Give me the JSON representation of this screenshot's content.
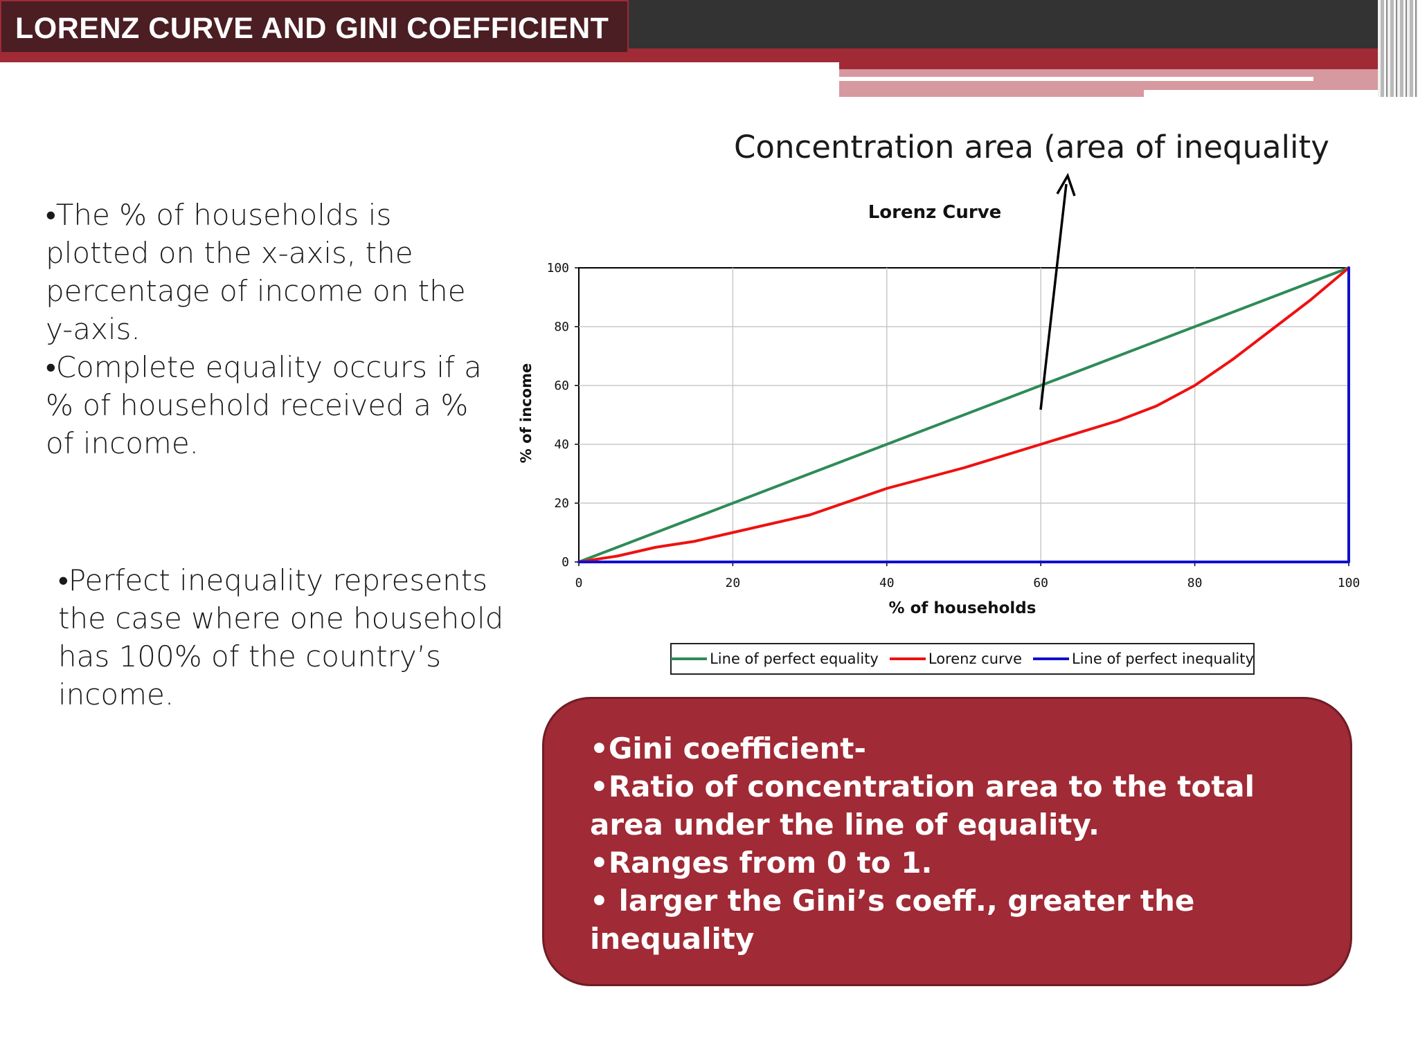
{
  "slide": {
    "title": "LORENZ CURVE AND GINI COEFFICIENT",
    "left_bullets_top": [
      "•The % of households is plotted on the x-axis, the percentage of income on the y-axis.",
      "•Complete equality occurs if a % of household received a % of income."
    ],
    "left_bullets_bottom": [
      "•Perfect inequality represents the case where one household has 100% of the country’s income."
    ],
    "annotation": "Concentration area (area of inequality",
    "gini_box": [
      "•Gini coefficient-",
      "•Ratio of concentration area to the total area under the line of equality.",
      "•Ranges from 0 to 1.",
      "• larger the Gini’s coeff., greater the inequality"
    ]
  },
  "colors": {
    "header_dark": "#333333",
    "header_red": "#a02a35",
    "box_fill": "#a02a35",
    "equality_line": "#2e8b57",
    "lorenz_line": "#ee1111",
    "inequality_line": "#1010cc"
  },
  "chart_data": {
    "type": "line",
    "title": "Lorenz Curve",
    "xlabel": "% of households",
    "ylabel": "% of income",
    "xlim": [
      0,
      100
    ],
    "ylim": [
      0,
      100
    ],
    "xticks": [
      0,
      20,
      40,
      60,
      80,
      100
    ],
    "yticks": [
      0,
      20,
      40,
      60,
      80,
      100
    ],
    "grid": true,
    "legend_position": "bottom",
    "series": [
      {
        "name": "Line of perfect equality",
        "color": "#2e8b57",
        "x": [
          0,
          100
        ],
        "y": [
          0,
          100
        ]
      },
      {
        "name": "Lorenz curve",
        "color": "#ee1111",
        "x": [
          0,
          5,
          10,
          15,
          20,
          25,
          30,
          40,
          50,
          60,
          70,
          75,
          80,
          85,
          90,
          95,
          100
        ],
        "y": [
          0,
          2,
          5,
          7,
          10,
          13,
          16,
          25,
          32,
          40,
          48,
          53,
          60,
          69,
          79,
          89,
          100
        ]
      },
      {
        "name": "Line of perfect inequality",
        "color": "#1010cc",
        "x": [
          0,
          100,
          100
        ],
        "y": [
          0,
          0,
          100
        ]
      }
    ]
  }
}
